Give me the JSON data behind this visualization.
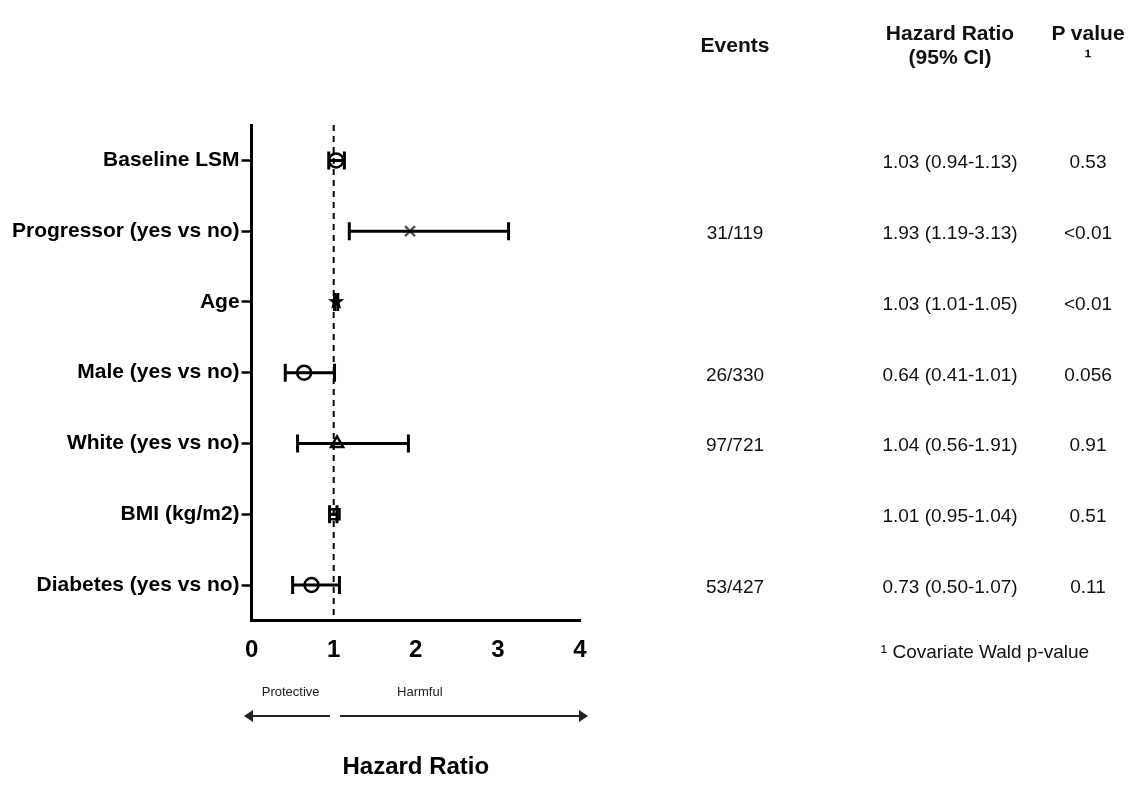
{
  "chart_data": [
    {
      "type": "scatter",
      "orientation": "horizontal",
      "xlabel": "Hazard Ratio",
      "categories": [
        "Baseline LSM",
        "Progressor (yes vs no)",
        "Age",
        "Male (yes vs no)",
        "White (yes vs no)",
        "BMI (kg/m2)",
        "Diabetes (yes vs no)"
      ],
      "series": [
        {
          "color": "#000000",
          "marker": "circle",
          "values": [
            1.03,
            null,
            null,
            null,
            null,
            null,
            null
          ],
          "errors": [
            [
              0.94,
              1.13
            ],
            null,
            null,
            null,
            null,
            null,
            null
          ]
        },
        {
          "color": "#555555",
          "marker": "cross",
          "values": [
            null,
            1.93,
            null,
            null,
            null,
            null,
            null
          ],
          "errors": [
            null,
            [
              1.19,
              3.13
            ],
            null,
            null,
            null,
            null,
            null
          ]
        },
        {
          "color": "#000000",
          "marker": "star",
          "values": [
            null,
            null,
            1.03,
            null,
            null,
            null,
            null
          ],
          "errors": [
            null,
            null,
            [
              1.01,
              1.05
            ],
            null,
            null,
            null,
            null
          ]
        },
        {
          "color": "#000000",
          "marker": "circle",
          "values": [
            null,
            null,
            null,
            0.64,
            null,
            null,
            null
          ],
          "errors": [
            null,
            null,
            null,
            [
              0.41,
              1.01
            ],
            null,
            null,
            null
          ]
        },
        {
          "color": "#000000",
          "marker": "triangle",
          "values": [
            null,
            null,
            null,
            null,
            1.04,
            null,
            null
          ],
          "errors": [
            null,
            null,
            null,
            null,
            [
              0.56,
              1.91
            ],
            null,
            null
          ]
        },
        {
          "color": "#000000",
          "marker": "square",
          "values": [
            null,
            null,
            null,
            null,
            null,
            1.01,
            null
          ],
          "errors": [
            null,
            null,
            null,
            null,
            null,
            [
              0.95,
              1.04
            ],
            null
          ]
        },
        {
          "color": "#000000",
          "marker": "circle",
          "values": [
            null,
            null,
            null,
            null,
            null,
            null,
            0.73
          ],
          "errors": [
            null,
            null,
            null,
            null,
            null,
            null,
            [
              0.5,
              1.07
            ]
          ]
        }
      ],
      "xlim": [
        0,
        4
      ],
      "xticks": [
        0,
        1,
        2,
        3,
        4
      ],
      "grid": false,
      "legend": false,
      "ref_lines": [
        {
          "axis": "x",
          "value": 1,
          "line_style": "dashed",
          "color": "#000000"
        }
      ],
      "annotations": [
        "Protective",
        "Harmful"
      ]
    },
    {
      "type": "other",
      "categories": [
        "Events",
        "Hazard Ratio (95% CI)",
        "P value ¹"
      ],
      "cell_labels": [
        [
          null,
          "1.03 (0.94-1.13)",
          "0.53"
        ],
        [
          "31/119",
          "1.93 (1.19-3.13)",
          "<0.01"
        ],
        [
          null,
          "1.03 (1.01-1.05)",
          "<0.01"
        ],
        [
          "26/330",
          "0.64 (0.41-1.01)",
          "0.056"
        ],
        [
          "97/721",
          "1.04 (0.56-1.91)",
          "0.91"
        ],
        [
          null,
          "1.01 (0.95-1.04)",
          "0.51"
        ],
        [
          "53/427",
          "0.73 (0.50-1.07)",
          "0.11"
        ]
      ],
      "annotations": [
        "¹ Covariate Wald p-value"
      ]
    }
  ]
}
